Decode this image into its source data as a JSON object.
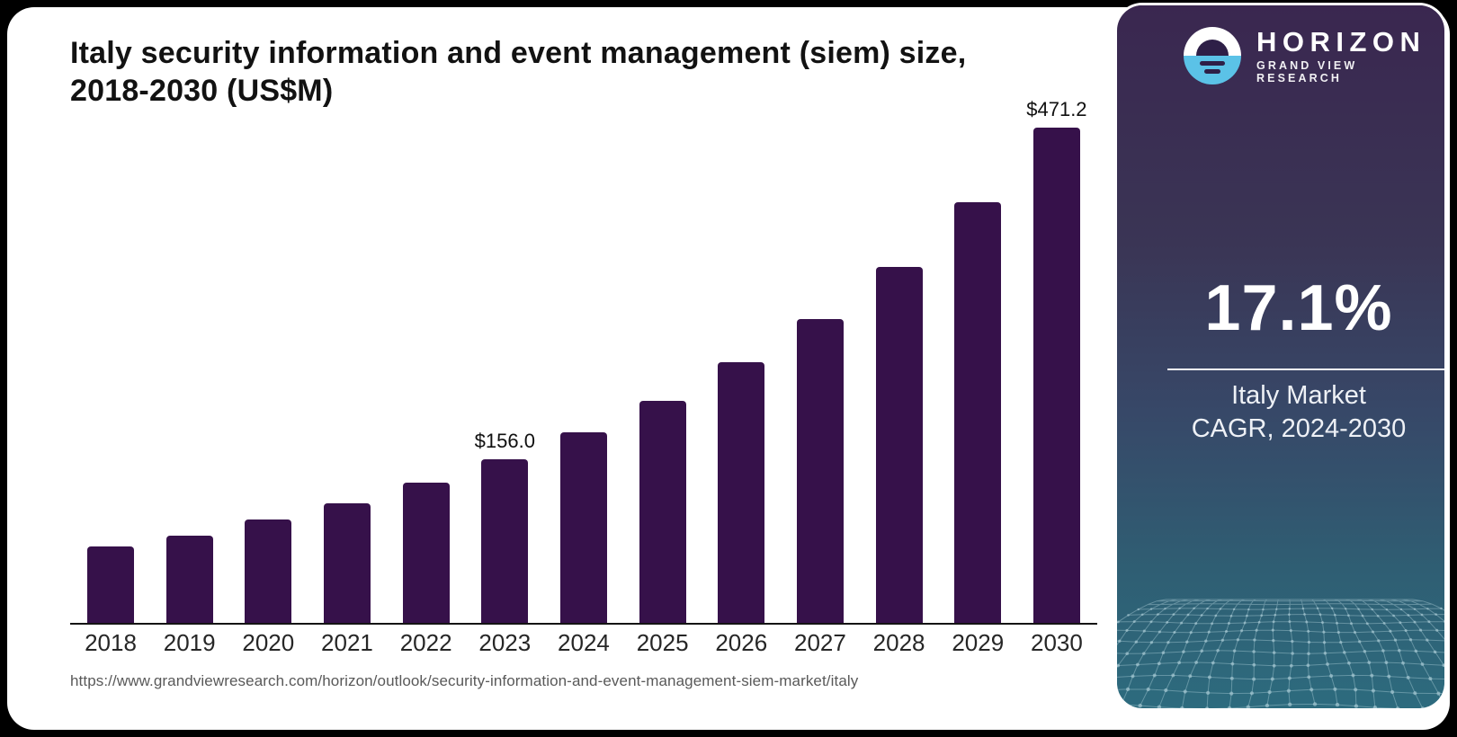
{
  "header": {
    "title_line1": "Italy security information and event management (siem) size,",
    "title_line2": "2018-2030 (US$M)"
  },
  "chart_data": {
    "type": "bar",
    "title": "Italy security information and event management (siem) size, 2018-2030 (US$M)",
    "unit": "US$M",
    "categories": [
      "2018",
      "2019",
      "2020",
      "2021",
      "2022",
      "2023",
      "2024",
      "2025",
      "2026",
      "2027",
      "2028",
      "2029",
      "2030"
    ],
    "values": [
      73.0,
      83.3,
      98.4,
      114.0,
      133.6,
      156.0,
      181.5,
      211.0,
      248.0,
      289.0,
      338.5,
      400.0,
      471.2
    ],
    "value_labels": [
      null,
      null,
      null,
      null,
      null,
      "$156.0",
      null,
      null,
      null,
      null,
      null,
      null,
      "$471.2"
    ],
    "bar_color": "#36114A",
    "axis_color": "#141414",
    "ylim": [
      0,
      500
    ],
    "grid": false,
    "legend_position": "none",
    "xlabel": "",
    "ylabel": ""
  },
  "source_url": "https://www.grandviewresearch.com/horizon/outlook/security-information-and-event-management-siem-market/italy",
  "sidebar": {
    "brand": "HORIZON",
    "brand_sub": "GRAND VIEW RESEARCH",
    "cagr_value": "17.1%",
    "cagr_label_line1": "Italy Market",
    "cagr_label_line2": "CAGR, 2024-2030",
    "accent_light_blue": "#5BC2E7",
    "panel_top_color": "#3A2750",
    "panel_bottom_color": "#2D6B7E"
  }
}
